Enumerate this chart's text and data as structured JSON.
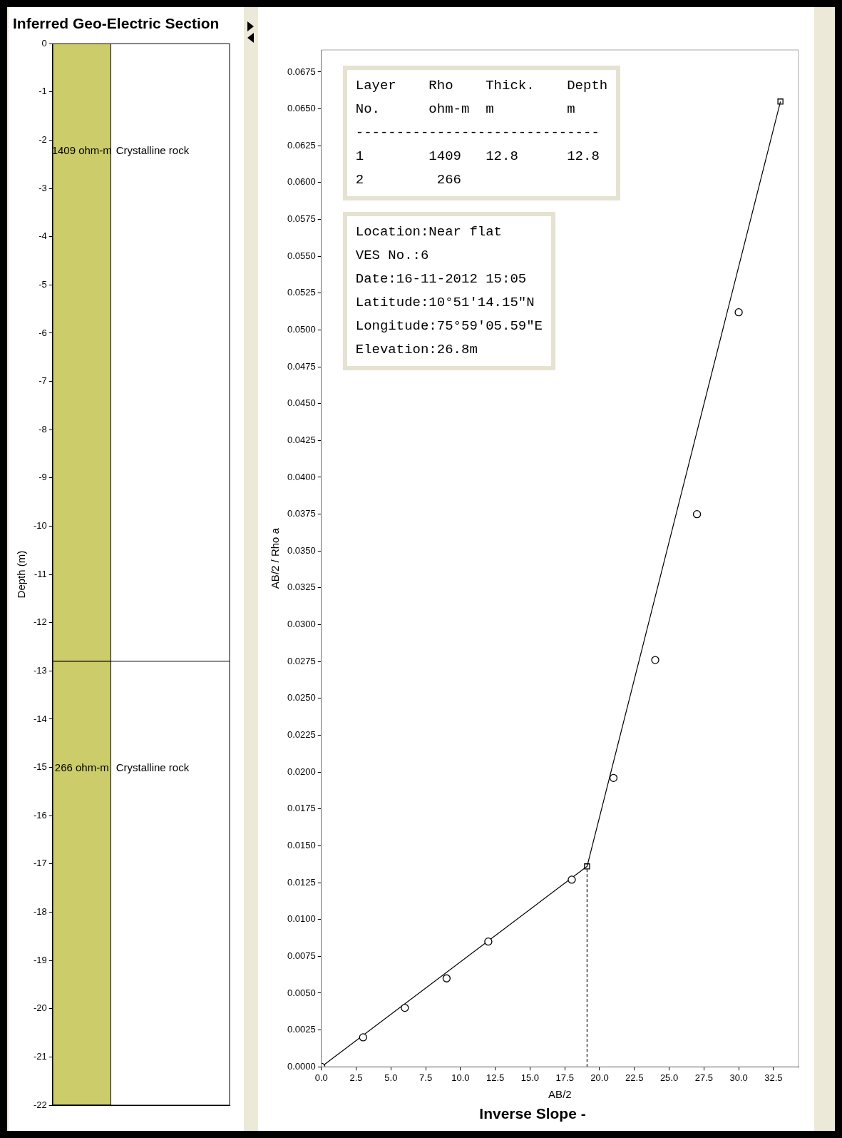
{
  "chart_data": [
    {
      "type": "bar",
      "stacked": true,
      "title": "Inferred Geo-Electric Section",
      "ylabel": "Depth (m)",
      "categories": [
        null
      ],
      "series": [
        {
          "color": "#cccc6a",
          "values": [
            -12.8
          ]
        },
        {
          "color": "#cccc6a",
          "values": [
            -9.2
          ]
        }
      ],
      "ylim": [
        -22,
        0
      ],
      "yticks": [
        0,
        -1,
        -2,
        -3,
        -4,
        -5,
        -6,
        -7,
        -8,
        -9,
        -10,
        -11,
        -12,
        -13,
        -14,
        -15,
        -16,
        -17,
        -18,
        -19,
        -20,
        -21,
        -22
      ],
      "ref_lines": [
        {
          "axis": "y",
          "value": -12.8,
          "color": "#000000"
        }
      ],
      "annotations": [
        "1409 ohm-m",
        "Crystalline rock",
        "266 ohm-m",
        "Crystalline rock"
      ],
      "tick_labels": "y"
    },
    {
      "type": "scatter",
      "title": "Inverse Slope -",
      "xlabel": "AB/2",
      "ylabel": "AB/2 / Rho a",
      "x": [
        0,
        3,
        6,
        9,
        12,
        18,
        21,
        24,
        27,
        30
      ],
      "series": [
        {
          "type": "scatter",
          "color": "#000000",
          "marker": "circle",
          "values": [
            0,
            0.002,
            0.004,
            0.006,
            0.0085,
            0.0127,
            0.0196,
            0.0276,
            0.0375,
            0.0512
          ]
        },
        {
          "type": "line",
          "color": "#000000",
          "marker": "none",
          "x": [
            0,
            19.1,
            33
          ],
          "values": [
            0,
            0.0136,
            0.0655
          ]
        },
        {
          "type": "scatter",
          "color": "#000000",
          "marker": "square",
          "x": [
            19.1,
            33
          ],
          "values": [
            0.0136,
            0.0655
          ]
        },
        {
          "type": "line",
          "color": "#000000",
          "marker": "none",
          "line_style": "dashed",
          "x": [
            19.1,
            19.1
          ],
          "values": [
            0,
            0.0136
          ]
        }
      ],
      "xlim": [
        0,
        34.3
      ],
      "ylim": [
        0,
        0.069
      ],
      "xticks": [
        {
          "value": 0,
          "label": "0.0"
        },
        {
          "value": 2.5,
          "label": "2.5"
        },
        {
          "value": 5,
          "label": "5.0"
        },
        {
          "value": 7.5,
          "label": "7.5"
        },
        {
          "value": 10,
          "label": "10.0"
        },
        {
          "value": 12.5,
          "label": "12.5"
        },
        {
          "value": 15,
          "label": "15.0"
        },
        {
          "value": 17.5,
          "label": "17.5"
        },
        {
          "value": 20,
          "label": "20.0"
        },
        {
          "value": 22.5,
          "label": "22.5"
        },
        {
          "value": 25,
          "label": "25.0"
        },
        {
          "value": 27.5,
          "label": "27.5"
        },
        {
          "value": 30,
          "label": "30.0"
        },
        {
          "value": 32.5,
          "label": "32.5"
        }
      ],
      "yticks": [
        {
          "value": 0,
          "label": "0.0000"
        },
        {
          "value": 0.0025,
          "label": "0.0025"
        },
        {
          "value": 0.005,
          "label": "0.0050"
        },
        {
          "value": 0.0075,
          "label": "0.0075"
        },
        {
          "value": 0.01,
          "label": "0.0100"
        },
        {
          "value": 0.0125,
          "label": "0.0125"
        },
        {
          "value": 0.015,
          "label": "0.0150"
        },
        {
          "value": 0.0175,
          "label": "0.0175"
        },
        {
          "value": 0.02,
          "label": "0.0200"
        },
        {
          "value": 0.0225,
          "label": "0.0225"
        },
        {
          "value": 0.025,
          "label": "0.0250"
        },
        {
          "value": 0.0275,
          "label": "0.0275"
        },
        {
          "value": 0.03,
          "label": "0.0300"
        },
        {
          "value": 0.0325,
          "label": "0.0325"
        },
        {
          "value": 0.035,
          "label": "0.0350"
        },
        {
          "value": 0.0375,
          "label": "0.0375"
        },
        {
          "value": 0.04,
          "label": "0.0400"
        },
        {
          "value": 0.0425,
          "label": "0.0425"
        },
        {
          "value": 0.045,
          "label": "0.0450"
        },
        {
          "value": 0.0475,
          "label": "0.0475"
        },
        {
          "value": 0.05,
          "label": "0.0500"
        },
        {
          "value": 0.0525,
          "label": "0.0525"
        },
        {
          "value": 0.055,
          "label": "0.0550"
        },
        {
          "value": 0.0575,
          "label": "0.0575"
        },
        {
          "value": 0.06,
          "label": "0.0600"
        },
        {
          "value": 0.0625,
          "label": "0.0625"
        },
        {
          "value": 0.065,
          "label": "0.0650"
        },
        {
          "value": 0.0675,
          "label": "0.0675"
        }
      ],
      "annotations": [
        "Layer    Rho    Thick.    Depth\nNo.      ohm-m  m         m\n------------------------------\n1        1409   12.8      12.8\n2         266",
        "Location:Near flat\nVES No.:6\nDate:16-11-2012 15:05\nLatitude:10°51'14.15\"N\nLongitude:75°59'05.59\"E\nElevation:26.8m"
      ]
    }
  ]
}
